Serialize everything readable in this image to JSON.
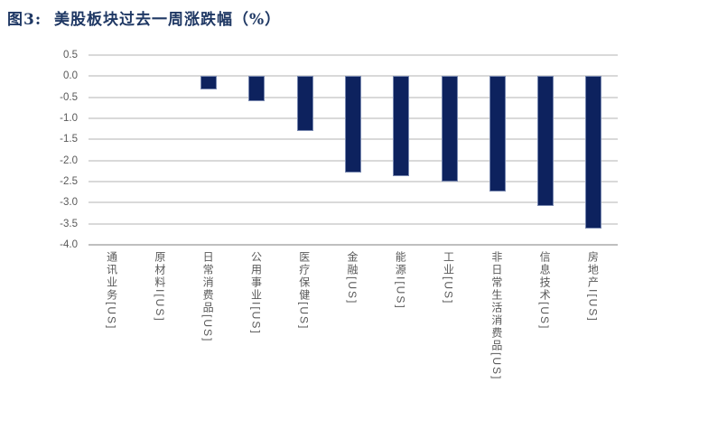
{
  "title": "图3:  美股板块过去一周涨跌幅（%）",
  "colors": {
    "title_text": "#1F3864",
    "bar_fill": "#0D225E",
    "bar_border": "#7787AF",
    "gridline": "#D9D9D9",
    "axis_line": "#BFBFBF",
    "axis_text": "#595959"
  },
  "chart_data": {
    "type": "bar",
    "title": "图3: 美股板块过去一周涨跌幅（%）",
    "categories": [
      "通讯业务[US]",
      "原材料I[US]",
      "日常消费品[US]",
      "公用事业I[US]",
      "医疗保健[US]",
      "金融[US]",
      "能源I[US]",
      "工业[US]",
      "非日常生活消费品[US]",
      "信息技术[US]",
      "房地产I[US]"
    ],
    "values": [
      0.0,
      0.0,
      -0.32,
      -0.6,
      -1.29,
      -2.28,
      -2.37,
      -2.49,
      -2.73,
      -3.07,
      -3.61
    ],
    "xlabel": "",
    "ylabel": "",
    "ylim": [
      -4.0,
      0.5
    ],
    "ytick_step": 0.5,
    "yticks": [
      "0.5",
      "0.0",
      "-0.5",
      "-1.0",
      "-1.5",
      "-2.0",
      "-2.5",
      "-3.0",
      "-3.5",
      "-4.0"
    ],
    "grid": true,
    "legend": "none",
    "bar_orientation": "vertical-negative"
  }
}
